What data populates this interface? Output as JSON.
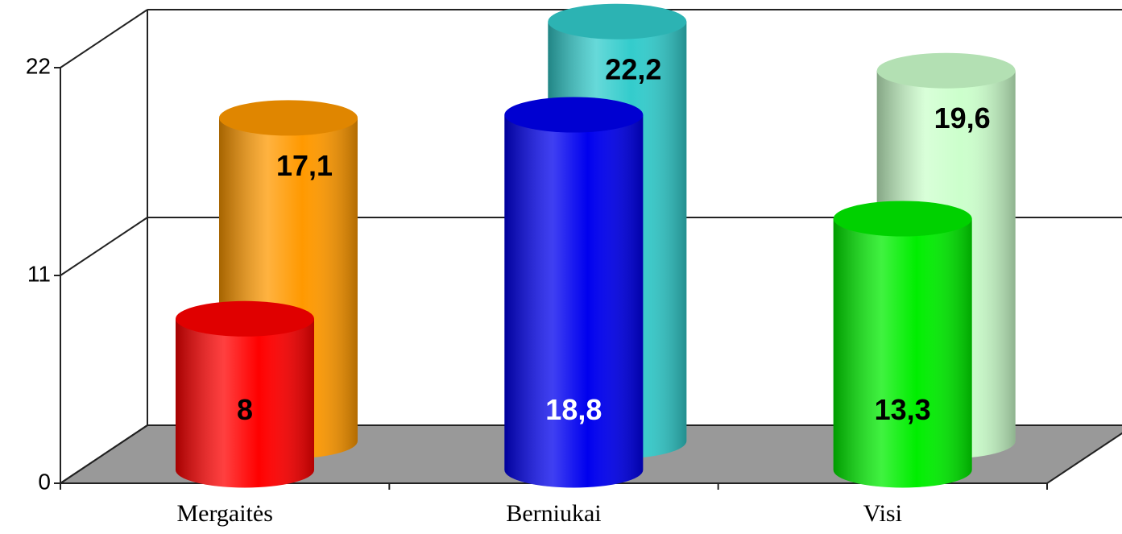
{
  "chart_data": {
    "type": "bar3d",
    "categories": [
      "Mergaitės",
      "Berniukai",
      "Visi"
    ],
    "series": [
      {
        "colors": [
          "#ff0000",
          "#0000ee",
          "#00ee00"
        ],
        "label_colors": [
          "#000000",
          "#ffffff",
          "#000000"
        ],
        "values": [
          8,
          18.8,
          13.3
        ],
        "value_labels": [
          "8",
          "18,8",
          "13,3"
        ]
      },
      {
        "colors": [
          "#ff9900",
          "#33cccc",
          "#ccffcc"
        ],
        "label_colors": [
          "#000000",
          "#000000",
          "#000000"
        ],
        "values": [
          17.1,
          22.2,
          19.6
        ],
        "value_labels": [
          "17,1",
          "22,2",
          "19,6"
        ]
      }
    ],
    "ylim": [
      0,
      22
    ],
    "yticks": [
      0,
      11,
      22
    ],
    "grid": true
  }
}
